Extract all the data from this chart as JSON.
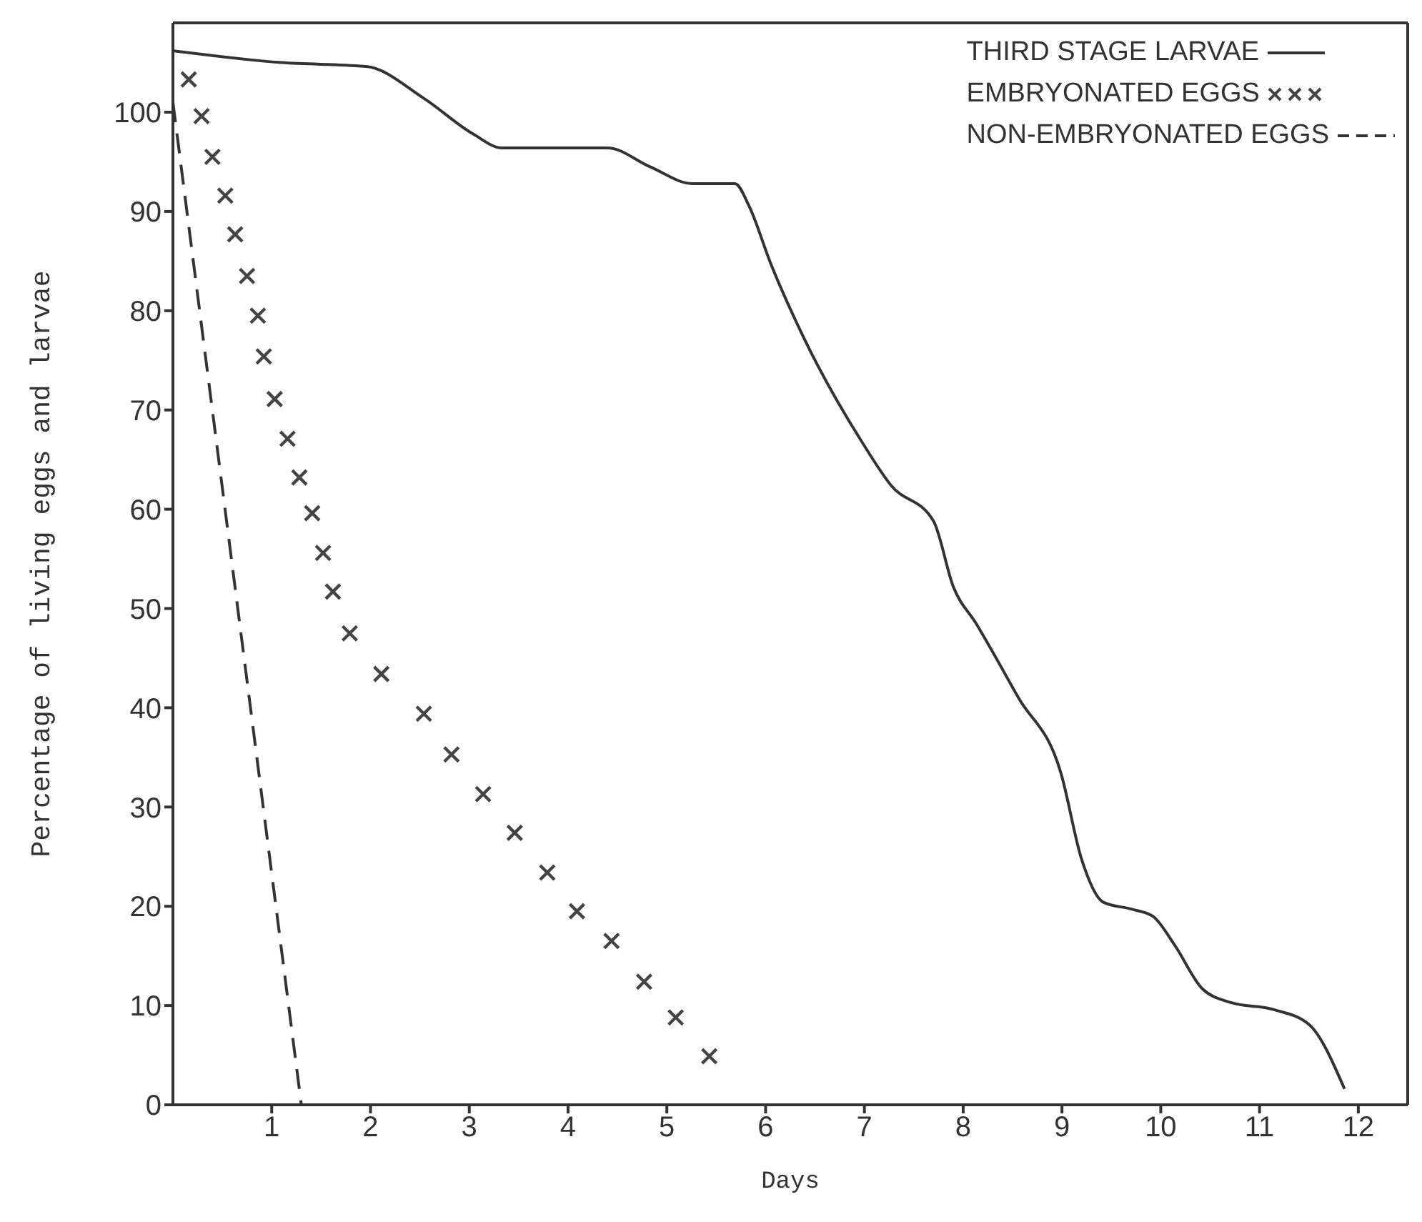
{
  "chart_data": {
    "type": "line",
    "xlabel": "Days",
    "ylabel": "Percentage of living eggs and larvae",
    "xlim": [
      0,
      12.5
    ],
    "ylim": [
      0,
      109
    ],
    "xticks": [
      1,
      2,
      3,
      4,
      5,
      6,
      7,
      8,
      9,
      10,
      11,
      12
    ],
    "yticks": [
      0,
      10,
      20,
      30,
      40,
      50,
      60,
      70,
      80,
      90,
      100
    ],
    "grid": false,
    "legend": "top right",
    "series": [
      {
        "name": "THIRD STAGE LARVAE",
        "color": "#333333",
        "line_style": "solid",
        "marker": "none",
        "x": [
          0,
          1.1,
          1.96,
          2.54,
          3.04,
          3.33,
          4.4,
          4.83,
          5.26,
          5.69,
          5.83,
          6.05,
          6.41,
          6.98,
          7.27,
          7.7,
          7.9,
          8.13,
          8.56,
          8.99,
          9.2,
          9.42,
          9.71,
          9.92,
          10.14,
          10.42,
          10.71,
          11.14,
          11.5,
          11.86
        ],
        "values": [
          106.2,
          105,
          104.6,
          101.4,
          97.8,
          96.4,
          96.4,
          94.5,
          92.8,
          92.8,
          90.6,
          84.8,
          76.8,
          66.7,
          62.4,
          58.8,
          52.2,
          48.5,
          41,
          33.4,
          24.7,
          20.4,
          19.7,
          19,
          16.1,
          11.7,
          10.3,
          9.6,
          8.1,
          1.6
        ]
      },
      {
        "name": "EMBRYONATED EGGS",
        "type": "scatter",
        "color": "#444444",
        "marker": "cross",
        "x": [
          0.16,
          0.29,
          0.4,
          0.53,
          0.63,
          0.75,
          0.86,
          0.92,
          1.03,
          1.16,
          1.28,
          1.41,
          1.52,
          1.62,
          1.79,
          2.11,
          2.54,
          2.82,
          3.14,
          3.46,
          3.79,
          4.09,
          4.44,
          4.77,
          5.09,
          5.43
        ],
        "values": [
          103.3,
          99.6,
          95.5,
          91.6,
          87.7,
          83.5,
          79.5,
          75.4,
          71.1,
          67.1,
          63.2,
          59.6,
          55.6,
          51.7,
          47.5,
          43.4,
          39.4,
          35.3,
          31.3,
          27.4,
          23.4,
          19.5,
          16.5,
          12.4,
          8.8,
          4.9
        ]
      },
      {
        "name": "NON-EMBRYONATED EGGS",
        "color": "#333333",
        "line_style": "dashed",
        "marker": "none",
        "x": [
          0,
          1.3
        ],
        "values": [
          101,
          0
        ]
      }
    ]
  }
}
